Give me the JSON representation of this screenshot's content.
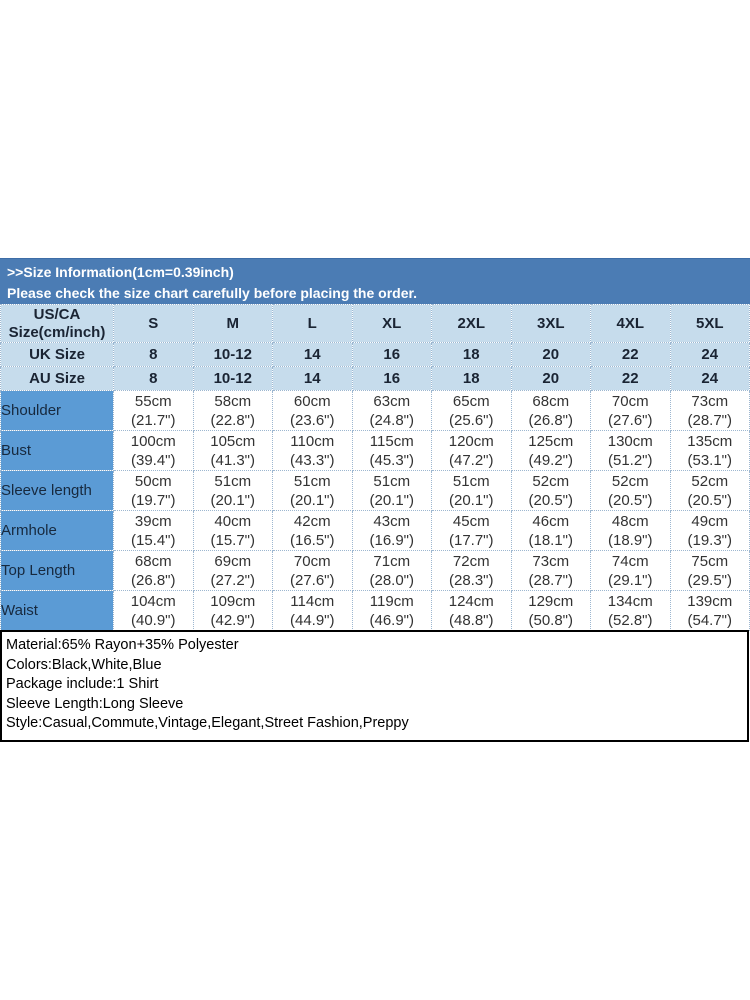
{
  "colors": {
    "band_blue": "#4b7cb4",
    "header_blue": "#c6dcec",
    "label_blue": "#5b9bd5"
  },
  "header": {
    "title": ">>Size Information(1cm=0.39inch)",
    "subtitle": "Please check the size chart carefully before placing the order."
  },
  "size_table": {
    "corner_line1": "US/CA",
    "corner_line2": "Size(cm/inch)",
    "sizes": [
      "S",
      "M",
      "L",
      "XL",
      "2XL",
      "3XL",
      "4XL",
      "5XL"
    ],
    "uk_row": {
      "label": "UK Size",
      "values": [
        "8",
        "10-12",
        "14",
        "16",
        "18",
        "20",
        "22",
        "24"
      ]
    },
    "au_row": {
      "label": "AU Size",
      "values": [
        "8",
        "10-12",
        "14",
        "16",
        "18",
        "20",
        "22",
        "24"
      ]
    },
    "measurements": [
      {
        "label": "Shoulder",
        "cells": [
          {
            "cm": "55cm",
            "inch": "(21.7\")"
          },
          {
            "cm": "58cm",
            "inch": "(22.8\")"
          },
          {
            "cm": "60cm",
            "inch": "(23.6\")"
          },
          {
            "cm": "63cm",
            "inch": "(24.8\")"
          },
          {
            "cm": "65cm",
            "inch": "(25.6\")"
          },
          {
            "cm": "68cm",
            "inch": "(26.8\")"
          },
          {
            "cm": "70cm",
            "inch": "(27.6\")"
          },
          {
            "cm": "73cm",
            "inch": "(28.7\")"
          }
        ]
      },
      {
        "label": "Bust",
        "cells": [
          {
            "cm": "100cm",
            "inch": "(39.4\")"
          },
          {
            "cm": "105cm",
            "inch": "(41.3\")"
          },
          {
            "cm": "110cm",
            "inch": "(43.3\")"
          },
          {
            "cm": "115cm",
            "inch": "(45.3\")"
          },
          {
            "cm": "120cm",
            "inch": "(47.2\")"
          },
          {
            "cm": "125cm",
            "inch": "(49.2\")"
          },
          {
            "cm": "130cm",
            "inch": "(51.2\")"
          },
          {
            "cm": "135cm",
            "inch": "(53.1\")"
          }
        ]
      },
      {
        "label": "Sleeve length",
        "cells": [
          {
            "cm": "50cm",
            "inch": "(19.7\")"
          },
          {
            "cm": "51cm",
            "inch": "(20.1\")"
          },
          {
            "cm": "51cm",
            "inch": "(20.1\")"
          },
          {
            "cm": "51cm",
            "inch": "(20.1\")"
          },
          {
            "cm": "51cm",
            "inch": "(20.1\")"
          },
          {
            "cm": "52cm",
            "inch": "(20.5\")"
          },
          {
            "cm": "52cm",
            "inch": "(20.5\")"
          },
          {
            "cm": "52cm",
            "inch": "(20.5\")"
          }
        ]
      },
      {
        "label": "Armhole",
        "cells": [
          {
            "cm": "39cm",
            "inch": "(15.4\")"
          },
          {
            "cm": "40cm",
            "inch": "(15.7\")"
          },
          {
            "cm": "42cm",
            "inch": "(16.5\")"
          },
          {
            "cm": "43cm",
            "inch": "(16.9\")"
          },
          {
            "cm": "45cm",
            "inch": "(17.7\")"
          },
          {
            "cm": "46cm",
            "inch": "(18.1\")"
          },
          {
            "cm": "48cm",
            "inch": "(18.9\")"
          },
          {
            "cm": "49cm",
            "inch": "(19.3\")"
          }
        ]
      },
      {
        "label": "Top Length",
        "cells": [
          {
            "cm": "68cm",
            "inch": "(26.8\")"
          },
          {
            "cm": "69cm",
            "inch": "(27.2\")"
          },
          {
            "cm": "70cm",
            "inch": "(27.6\")"
          },
          {
            "cm": "71cm",
            "inch": "(28.0\")"
          },
          {
            "cm": "72cm",
            "inch": "(28.3\")"
          },
          {
            "cm": "73cm",
            "inch": "(28.7\")"
          },
          {
            "cm": "74cm",
            "inch": "(29.1\")"
          },
          {
            "cm": "75cm",
            "inch": "(29.5\")"
          }
        ]
      },
      {
        "label": "Waist",
        "cells": [
          {
            "cm": "104cm",
            "inch": "(40.9\")"
          },
          {
            "cm": "109cm",
            "inch": "(42.9\")"
          },
          {
            "cm": "114cm",
            "inch": "(44.9\")"
          },
          {
            "cm": "119cm",
            "inch": "(46.9\")"
          },
          {
            "cm": "124cm",
            "inch": "(48.8\")"
          },
          {
            "cm": "129cm",
            "inch": "(50.8\")"
          },
          {
            "cm": "134cm",
            "inch": "(52.8\")"
          },
          {
            "cm": "139cm",
            "inch": "(54.7\")"
          }
        ]
      }
    ]
  },
  "details": {
    "lines": [
      "Material:65% Rayon+35% Polyester",
      "Colors:Black,White,Blue",
      "Package include:1 Shirt",
      "Sleeve Length:Long Sleeve",
      "Style:Casual,Commute,Vintage,Elegant,Street Fashion,Preppy"
    ]
  }
}
